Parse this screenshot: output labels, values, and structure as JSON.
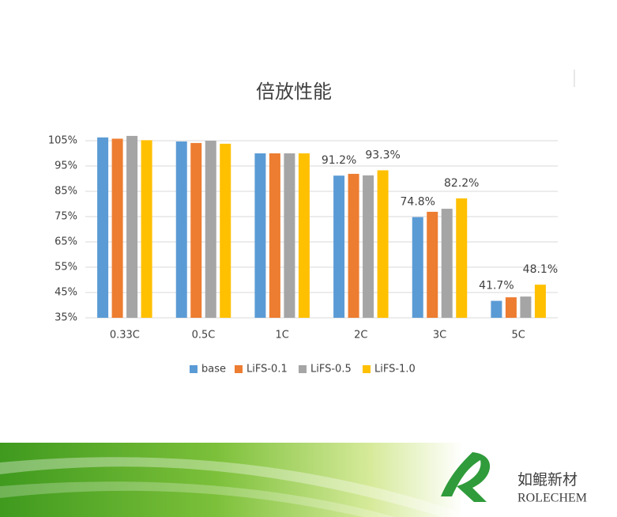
{
  "chart_data": {
    "type": "bar",
    "title": "倍放性能",
    "categories": [
      "0.33C",
      "0.5C",
      "1C",
      "2C",
      "3C",
      "5C"
    ],
    "series": [
      {
        "name": "base",
        "color": "#5b9bd5",
        "values": [
          106.3,
          104.7,
          100,
          91.2,
          74.8,
          41.7
        ],
        "value_labels": [
          null,
          null,
          null,
          "91.2%",
          "74.8%",
          "41.7%"
        ]
      },
      {
        "name": "LiFS-0.1",
        "color": "#ed7d31",
        "values": [
          105.8,
          104.1,
          100,
          91.9,
          76.9,
          43.1
        ],
        "value_labels": [
          null,
          null,
          null,
          null,
          null,
          null
        ]
      },
      {
        "name": "LiFS-0.5",
        "color": "#a5a5a5",
        "values": [
          106.9,
          105,
          100,
          91.3,
          78.1,
          43.4
        ],
        "value_labels": [
          null,
          null,
          null,
          null,
          null,
          null
        ]
      },
      {
        "name": "LiFS-1.0",
        "color": "#ffc000",
        "values": [
          105.2,
          103.8,
          100,
          93.3,
          82.2,
          48.1
        ],
        "value_labels": [
          null,
          null,
          null,
          "93.3%",
          "82.2%",
          "48.1%"
        ]
      }
    ],
    "ylim": [
      35,
      105
    ],
    "yticks": [
      {
        "value": 35,
        "label": "35%"
      },
      {
        "value": 45,
        "label": "45%"
      },
      {
        "value": 55,
        "label": "55%"
      },
      {
        "value": 65,
        "label": "65%"
      },
      {
        "value": 75,
        "label": "75%"
      },
      {
        "value": 85,
        "label": "85%"
      },
      {
        "value": 95,
        "label": "95%"
      },
      {
        "value": 105,
        "label": "105%"
      }
    ],
    "grid": true,
    "legend": "bottom"
  },
  "logo": {
    "name": "如鲲新材",
    "brand": "ROLECHEM"
  }
}
